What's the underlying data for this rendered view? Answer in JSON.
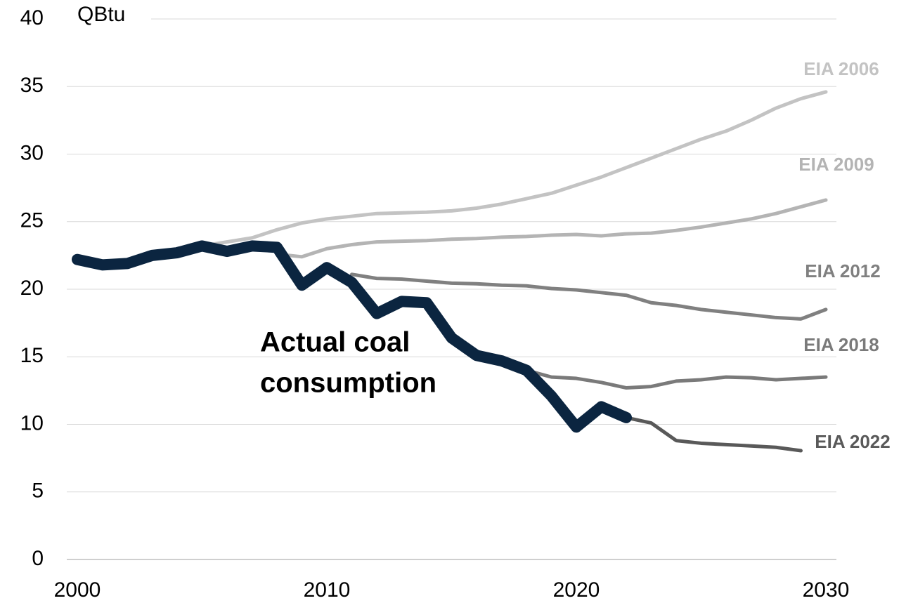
{
  "chart_data": {
    "type": "line",
    "y_axis_label": "QBtu",
    "annotation": [
      "Actual coal",
      "consumption"
    ],
    "xlim": [
      2000,
      2030
    ],
    "xticks": [
      2000,
      2010,
      2020,
      2030
    ],
    "ylim": [
      0,
      40
    ],
    "yticks": [
      0,
      5,
      10,
      15,
      20,
      25,
      30,
      35,
      40
    ],
    "grid": true,
    "series": [
      {
        "name": "EIA 2006",
        "color": "#c3c3c3",
        "x": [
          2005,
          2006,
          2007,
          2008,
          2009,
          2010,
          2011,
          2012,
          2013,
          2014,
          2015,
          2016,
          2017,
          2018,
          2019,
          2020,
          2021,
          2022,
          2023,
          2024,
          2025,
          2026,
          2027,
          2028,
          2029,
          2030
        ],
        "values": [
          23.2,
          23.5,
          23.8,
          24.4,
          24.9,
          25.2,
          25.4,
          25.6,
          25.65,
          25.7,
          25.8,
          26.0,
          26.3,
          26.7,
          27.1,
          27.7,
          28.3,
          29.0,
          29.7,
          30.4,
          31.1,
          31.7,
          32.5,
          33.4,
          34.1,
          34.6
        ]
      },
      {
        "name": "EIA 2009",
        "color": "#b4b4b4",
        "x": [
          2008,
          2009,
          2010,
          2011,
          2012,
          2013,
          2014,
          2015,
          2016,
          2017,
          2018,
          2019,
          2020,
          2021,
          2022,
          2023,
          2024,
          2025,
          2026,
          2027,
          2028,
          2029,
          2030
        ],
        "values": [
          22.6,
          22.4,
          23.0,
          23.3,
          23.5,
          23.55,
          23.6,
          23.7,
          23.75,
          23.85,
          23.9,
          24.0,
          24.05,
          23.95,
          24.1,
          24.15,
          24.35,
          24.6,
          24.9,
          25.2,
          25.6,
          26.1,
          26.6
        ]
      },
      {
        "name": "EIA 2012",
        "color": "#808080",
        "x": [
          2011,
          2012,
          2013,
          2014,
          2015,
          2016,
          2017,
          2018,
          2019,
          2020,
          2021,
          2022,
          2023,
          2024,
          2025,
          2026,
          2027,
          2028,
          2029,
          2030
        ],
        "values": [
          21.1,
          20.8,
          20.75,
          20.6,
          20.45,
          20.4,
          20.3,
          20.25,
          20.05,
          19.95,
          19.75,
          19.55,
          19.0,
          18.8,
          18.5,
          18.3,
          18.1,
          17.9,
          17.8,
          18.5
        ]
      },
      {
        "name": "EIA 2018",
        "color": "#7a7a7a",
        "x": [
          2018,
          2019,
          2020,
          2021,
          2022,
          2023,
          2024,
          2025,
          2026,
          2027,
          2028,
          2029,
          2030
        ],
        "values": [
          14.0,
          13.5,
          13.4,
          13.1,
          12.7,
          12.8,
          13.2,
          13.3,
          13.5,
          13.45,
          13.3,
          13.4,
          13.5
        ]
      },
      {
        "name": "EIA 2022",
        "color": "#595959",
        "x": [
          2022,
          2023,
          2024,
          2025,
          2026,
          2027,
          2028,
          2029
        ],
        "values": [
          10.5,
          10.1,
          8.8,
          8.6,
          8.5,
          8.4,
          8.3,
          8.05
        ]
      },
      {
        "name": "Actual coal consumption",
        "color": "#0b2540",
        "x": [
          2000,
          2001,
          2002,
          2003,
          2004,
          2005,
          2006,
          2007,
          2008,
          2009,
          2010,
          2011,
          2012,
          2013,
          2014,
          2015,
          2016,
          2017,
          2018,
          2019,
          2020,
          2021,
          2022
        ],
        "values": [
          22.2,
          21.8,
          21.9,
          22.5,
          22.7,
          23.2,
          22.8,
          23.2,
          23.1,
          20.3,
          21.6,
          20.5,
          18.2,
          19.1,
          19.0,
          16.4,
          15.1,
          14.7,
          14.0,
          12.1,
          9.8,
          11.3,
          10.5
        ]
      }
    ]
  }
}
